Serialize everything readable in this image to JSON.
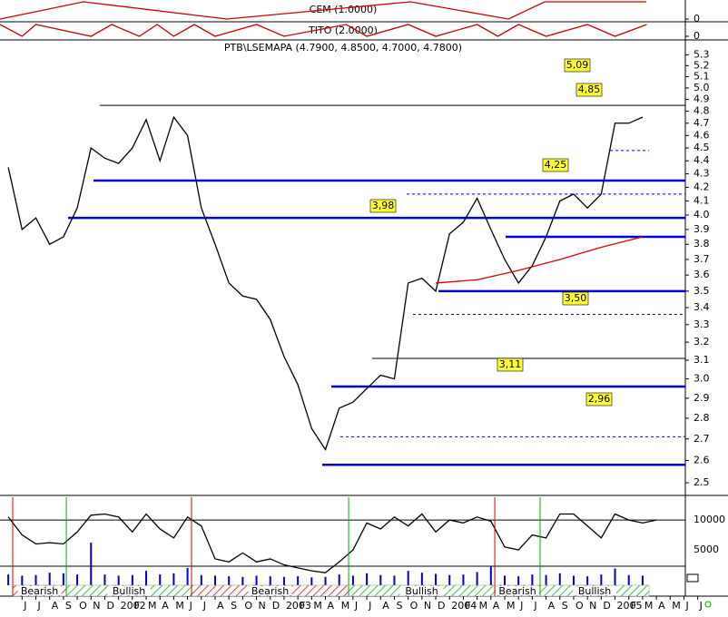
{
  "chart_data": {
    "type": "line",
    "title": "PTB\\LSEMAPA (4.7900, 4.8500, 4.7000, 4.7800)",
    "log_scale": true,
    "xlim": [
      -1.6,
      48.1
    ],
    "ylim": [
      2.449,
      5.44
    ],
    "yticks": [
      2.5,
      2.6,
      2.7,
      2.8,
      2.9,
      {
        "value": 3,
        "label": "3.0"
      },
      3.1,
      3.2,
      3.3,
      3.4,
      3.5,
      3.6,
      3.7,
      3.8,
      3.9,
      {
        "value": 4,
        "label": "4.0"
      },
      4.1,
      4.2,
      4.3,
      4.4,
      4.5,
      4.6,
      4.7,
      4.8,
      4.9,
      {
        "value": 5,
        "label": "5.0"
      },
      5.1,
      5.2,
      5.3
    ],
    "series": [
      {
        "color": "#000000",
        "x": [
          -1,
          0,
          1,
          2,
          3,
          4,
          5,
          6,
          7,
          8,
          9,
          10,
          11,
          12,
          13,
          14,
          15,
          16,
          17,
          18,
          19,
          20,
          21,
          22,
          23,
          24,
          25,
          26,
          27,
          28,
          29,
          30,
          31,
          32,
          33,
          34,
          35,
          36,
          37,
          38,
          39,
          40,
          41,
          42,
          43,
          44,
          45
        ],
        "values": [
          4.35,
          3.9,
          3.98,
          3.8,
          3.85,
          4.05,
          4.5,
          4.42,
          4.38,
          4.5,
          4.73,
          4.4,
          4.75,
          4.6,
          4.05,
          3.8,
          3.55,
          3.47,
          3.45,
          3.33,
          3.12,
          2.97,
          2.75,
          2.65,
          2.85,
          2.88,
          2.95,
          3.02,
          3.0,
          3.55,
          3.58,
          3.5,
          3.87,
          3.95,
          4.12,
          3.9,
          3.7,
          3.55,
          3.66,
          3.85,
          4.1,
          4.15,
          4.05,
          4.15,
          4.7,
          4.7,
          4.75
        ]
      },
      {
        "color": "#e00000",
        "x": [
          30,
          33,
          36,
          39,
          42,
          45
        ],
        "values": [
          3.55,
          3.57,
          3.63,
          3.7,
          3.78,
          3.85
        ]
      }
    ],
    "levels": [
      {
        "value": 4.85,
        "x": [
          5.64,
          48.1
        ],
        "color": "#000000",
        "style": "thin"
      },
      {
        "value": 4.48,
        "x": [
          42.64,
          45.47
        ],
        "color": "#0000cc",
        "style": "dashed"
      },
      {
        "value": 4.25,
        "x": [
          5.18,
          48.1
        ],
        "color": "#0000cc",
        "style": "thick"
      },
      {
        "value": 4.15,
        "x": [
          27.89,
          48.1
        ],
        "color": "#0000cc",
        "style": "dashed"
      },
      {
        "value": 3.98,
        "x": [
          3.34,
          48.1
        ],
        "color": "#0000cc",
        "style": "thick"
      },
      {
        "value": 3.85,
        "x": [
          35.07,
          48.1
        ],
        "color": "#0000cc",
        "style": "thick"
      },
      {
        "value": 3.5,
        "x": [
          30.2,
          48.1
        ],
        "color": "#0000cc",
        "style": "thick"
      },
      {
        "value": 3.36,
        "x": [
          28.35,
          48.1
        ],
        "color": "#0000cc",
        "style": "dashed"
      },
      {
        "value": 3.11,
        "x": [
          25.39,
          48.1
        ],
        "color": "#000000",
        "style": "thin"
      },
      {
        "value": 2.96,
        "x": [
          22.43,
          48.1
        ],
        "color": "#0000cc",
        "style": "thick"
      },
      {
        "value": 2.71,
        "x": [
          23.09,
          48.1
        ],
        "color": "#0000cc",
        "style": "dashed"
      },
      {
        "value": 2.58,
        "x": [
          21.77,
          48.1
        ],
        "color": "#0000cc",
        "style": "thick"
      }
    ],
    "annotations": [
      "5,09",
      "4,85",
      "4,25",
      "3,98",
      "3,50",
      "3,11",
      "2,96"
    ],
    "months": [
      "J",
      "J",
      "A",
      "S",
      "O",
      "N",
      "D",
      "2002",
      "F",
      "M",
      "A",
      "M",
      "J",
      "J",
      "A",
      "S",
      "O",
      "N",
      "D",
      "2003",
      "F",
      "M",
      "A",
      "M",
      "J",
      "J",
      "A",
      "S",
      "O",
      "N",
      "D",
      "2004",
      "F",
      "M",
      "A",
      "M",
      "J",
      "J",
      "A",
      "S",
      "O",
      "N",
      "D",
      "2005",
      "F",
      "M",
      "A",
      "M",
      "J",
      "J"
    ],
    "cem": {
      "title": "CEM (1.0000)",
      "color": "#cc0000",
      "ylim": [
        0,
        1
      ],
      "yticks": [
        0
      ],
      "x": [
        -1.6,
        4.46,
        14.86,
        28.16,
        35.27,
        37.9,
        45.27
      ],
      "values": [
        0,
        1,
        0,
        1,
        0,
        1,
        1
      ]
    },
    "tito": {
      "title": "TITO (2.0000)",
      "color": "#cc0000",
      "ylim": [
        0,
        1
      ],
      "yticks": [
        0
      ],
      "x": [
        -1.6,
        0,
        1,
        5,
        6.5,
        8.5,
        9.8,
        11,
        12.5,
        14,
        17,
        19,
        23.5,
        25,
        28,
        30,
        33,
        34.5,
        36,
        38,
        41,
        43,
        45.3
      ],
      "values": [
        1,
        0,
        1,
        0,
        1,
        0,
        1,
        0,
        1,
        0,
        1,
        0,
        1,
        0,
        1,
        0,
        1,
        0,
        1,
        0,
        1,
        0,
        1
      ]
    },
    "oscillator": {
      "color": "#000000",
      "ylim": [
        -900,
        13800
      ],
      "yticks": [
        10000,
        5000
      ],
      "x": [
        -1,
        0,
        1,
        2,
        3,
        4,
        5,
        6,
        7,
        8,
        9,
        10,
        11,
        12,
        13,
        14,
        15,
        16,
        17,
        18,
        19,
        20,
        21,
        22,
        23,
        24,
        25,
        26,
        27,
        28,
        29,
        30,
        31,
        32,
        33,
        34,
        35,
        36,
        37,
        38,
        39,
        40,
        41,
        42,
        43,
        44,
        45,
        46
      ],
      "values": [
        10500,
        7500,
        6000,
        6200,
        6000,
        8000,
        10800,
        11000,
        10500,
        8000,
        11000,
        8500,
        7000,
        10500,
        9000,
        3500,
        3000,
        4500,
        3000,
        3500,
        2500,
        2000,
        1500,
        1200,
        3000,
        5000,
        9500,
        8500,
        10500,
        9000,
        11000,
        8000,
        10000,
        9500,
        10500,
        9800,
        5500,
        5000,
        7500,
        7000,
        11000,
        11000,
        9000,
        7000,
        11000,
        10000,
        9500,
        10000
      ]
    },
    "volume": {
      "color": "#0000cc",
      "x": [
        -1,
        0,
        1,
        2,
        3,
        4,
        5,
        6,
        7,
        8,
        9,
        10,
        11,
        12,
        13,
        14,
        15,
        16,
        17,
        18,
        19,
        20,
        21,
        22,
        23,
        24,
        25,
        26,
        27,
        28,
        29,
        30,
        31,
        32,
        33,
        34,
        35,
        36,
        37,
        38,
        39,
        40,
        41,
        42,
        43,
        44,
        45
      ],
      "values": [
        900,
        700,
        800,
        1200,
        1100,
        900,
        6200,
        900,
        700,
        800,
        1500,
        900,
        1100,
        2000,
        800,
        700,
        600,
        500,
        700,
        600,
        500,
        600,
        400,
        500,
        900,
        700,
        1100,
        800,
        700,
        1500,
        1200,
        1000,
        800,
        900,
        1300,
        2200,
        700,
        600,
        900,
        800,
        1100,
        700,
        600,
        900,
        1900,
        800,
        700
      ]
    },
    "regimes": [
      {
        "label": "Bearish",
        "start": -0.68,
        "end": 3.21,
        "color": "#e00000"
      },
      {
        "label": "Bullish",
        "start": 3.21,
        "end": 12.29,
        "color": "#00b000"
      },
      {
        "label": "Bearish",
        "start": 12.29,
        "end": 23.68,
        "color": "#e00000"
      },
      {
        "label": "Bullish",
        "start": 23.68,
        "end": 34.28,
        "color": "#00b000"
      },
      {
        "label": "Bearish",
        "start": 34.28,
        "end": 37.57,
        "color": "#e00000"
      },
      {
        "label": "Bullish",
        "start": 37.57,
        "end": 45.47,
        "color": "#00b000"
      }
    ]
  }
}
